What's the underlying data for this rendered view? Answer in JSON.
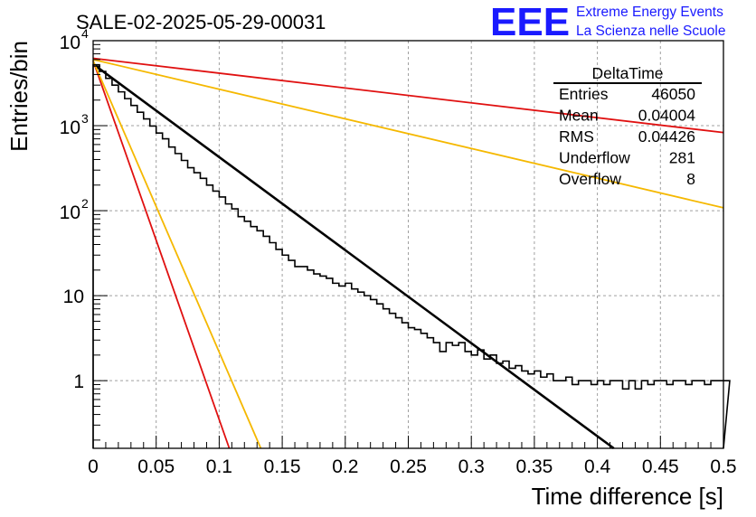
{
  "title": "SALE-02-2025-05-29-00031",
  "logo": {
    "mark": "EEE",
    "line1": "Extreme Energy Events",
    "line2": "La Scienza nelle Scuole"
  },
  "stats_box": {
    "name": "DeltaTime",
    "rows": [
      {
        "label": "Entries",
        "value": "46050"
      },
      {
        "label": "Mean",
        "value": "0.04004"
      },
      {
        "label": "RMS",
        "value": "0.04426"
      },
      {
        "label": "Underflow",
        "value": "281"
      },
      {
        "label": "Overflow",
        "value": "8"
      }
    ]
  },
  "chart_data": {
    "type": "histogram",
    "xlabel": "Time difference [s]",
    "ylabel": "Entries/bin",
    "xlim": [
      0,
      0.5
    ],
    "ylim": [
      0.16,
      10000
    ],
    "log_y": true,
    "grid": true,
    "bin_width": 0.005,
    "x_ticks": [
      {
        "value": 0,
        "label": "0"
      },
      {
        "value": 0.05,
        "label": "0.05"
      },
      {
        "value": 0.1,
        "label": "0.1"
      },
      {
        "value": 0.15,
        "label": "0.15"
      },
      {
        "value": 0.2,
        "label": "0.2"
      },
      {
        "value": 0.25,
        "label": "0.25"
      },
      {
        "value": 0.3,
        "label": "0.3"
      },
      {
        "value": 0.35,
        "label": "0.35"
      },
      {
        "value": 0.4,
        "label": "0.4"
      },
      {
        "value": 0.45,
        "label": "0.45"
      },
      {
        "value": 0.5,
        "label": "0.5"
      }
    ],
    "y_ticks": [
      {
        "value": 10000,
        "base": "10",
        "exp": "4"
      },
      {
        "value": 1000,
        "base": "10",
        "exp": "3"
      },
      {
        "value": 100,
        "base": "10",
        "exp": "2"
      },
      {
        "value": 10,
        "base": "10",
        "exp": ""
      },
      {
        "value": 1,
        "base": "1",
        "exp": ""
      }
    ],
    "histogram_values": [
      5200,
      4350,
      3600,
      3000,
      2500,
      2080,
      1730,
      1440,
      1200,
      990,
      820,
      700,
      560,
      470,
      390,
      320,
      280,
      240,
      200,
      170,
      145,
      120,
      105,
      85,
      75,
      65,
      58,
      50,
      42,
      35,
      30,
      26,
      22,
      22,
      20,
      18,
      17,
      16,
      14,
      13,
      14,
      12,
      11,
      10,
      9,
      8,
      7,
      6.2,
      5.5,
      4.8,
      4.2,
      4,
      3.6,
      3.2,
      2.8,
      2.2,
      2.8,
      2.6,
      2.8,
      2.2,
      2,
      2.3,
      1.8,
      2.0,
      1.6,
      1.7,
      1.4,
      1.5,
      1.3,
      1.2,
      1.3,
      1.1,
      1.2,
      1.0,
      1.0,
      1.1,
      0.9,
      1,
      1,
      0.9,
      1,
      0.9,
      1,
      1,
      0.8,
      1,
      0.8,
      1,
      0.9,
      1,
      1,
      0.9,
      1,
      1,
      0.9,
      1,
      1,
      0.9,
      1,
      1,
      1
    ],
    "histogram_values_note": "",
    "series": [
      {
        "color": "#000000",
        "style": "fit",
        "y0": 5300,
        "y_at_end": [
          0.413,
          0.16
        ]
      },
      {
        "color": "#e01010",
        "style": "line",
        "y0": 6200,
        "y_at_end": [
          0.5,
          830
        ]
      },
      {
        "color": "#f5b800",
        "style": "line",
        "y0": 6000,
        "y_at_end": [
          0.5,
          108
        ]
      },
      {
        "color": "#e01010",
        "style": "line",
        "y0": 5800,
        "y_at_end": [
          0.108,
          0.16
        ]
      },
      {
        "color": "#f5b800",
        "style": "line",
        "y0": 5800,
        "y_at_end": [
          0.133,
          0.16
        ]
      }
    ]
  }
}
